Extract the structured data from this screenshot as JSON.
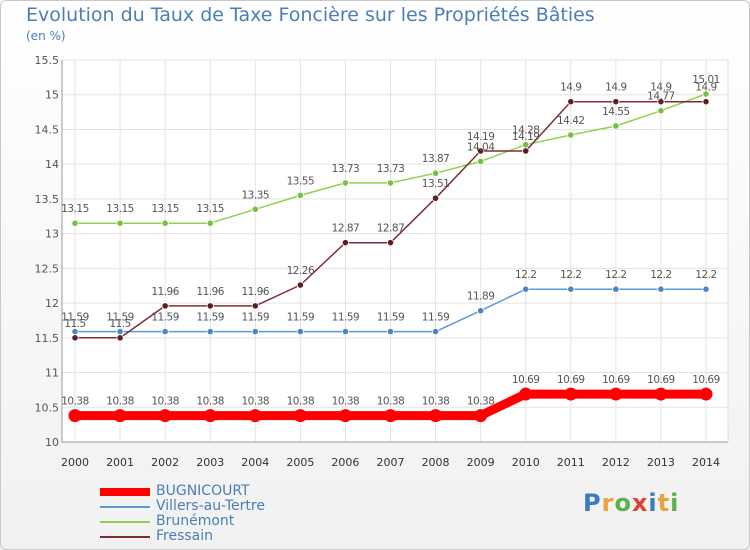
{
  "chart_data": {
    "type": "line",
    "title": "Evolution du Taux de Taxe Foncière sur les Propriétés Bâties",
    "ylabel": "(en %)",
    "categories": [
      "2000",
      "2001",
      "2002",
      "2003",
      "2004",
      "2005",
      "2006",
      "2007",
      "2008",
      "2009",
      "2010",
      "2011",
      "2012",
      "2013",
      "2014"
    ],
    "ylim": [
      10,
      15.5
    ],
    "yticks": [
      "10",
      "10.5",
      "11",
      "11.5",
      "12",
      "12.5",
      "13",
      "13.5",
      "14",
      "14.5",
      "15",
      "15.5"
    ],
    "grid": true,
    "legend_position": "bottom-left",
    "series": [
      {
        "name": "BUGNICOURT",
        "color": "#ff0000",
        "values": [
          10.38,
          10.38,
          10.38,
          10.38,
          10.38,
          10.38,
          10.38,
          10.38,
          10.38,
          10.38,
          10.69,
          10.69,
          10.69,
          10.69,
          10.69
        ],
        "labels": [
          "10.38",
          "10.38",
          "10.38",
          "10.38",
          "10.38",
          "10.38",
          "10.38",
          "10.38",
          "10.38",
          "10.38",
          "10.69",
          "10.69",
          "10.69",
          "10.69",
          "10.69"
        ]
      },
      {
        "name": "Villers-au-Tertre",
        "color": "#5b9bd5",
        "values": [
          11.59,
          11.59,
          11.59,
          11.59,
          11.59,
          11.59,
          11.59,
          11.59,
          11.59,
          11.89,
          12.2,
          12.2,
          12.2,
          12.2,
          12.2
        ],
        "labels": [
          "11.59",
          "11.59",
          "11.59",
          "11.59",
          "11.59",
          "11.59",
          "11.59",
          "11.59",
          "11.59",
          "11.89",
          "12.2",
          "12.2",
          "12.2",
          "12.2",
          "12.2"
        ]
      },
      {
        "name": "Brunémont",
        "color": "#8fd14f",
        "values": [
          13.15,
          13.15,
          13.15,
          13.15,
          13.35,
          13.55,
          13.73,
          13.73,
          13.87,
          14.04,
          14.28,
          14.42,
          14.55,
          14.77,
          15.01
        ],
        "labels": [
          "13.15",
          "13.15",
          "13.15",
          "13.15",
          "13.35",
          "13.55",
          "13.73",
          "13.73",
          "13.87",
          "14.04",
          "14.28",
          "14.42",
          "14.55",
          "14.77",
          "15.01"
        ]
      },
      {
        "name": "Fressain",
        "color": "#7b2f34",
        "values": [
          11.5,
          11.5,
          11.96,
          11.96,
          11.96,
          12.26,
          12.87,
          12.87,
          13.51,
          14.19,
          14.19,
          14.9,
          14.9,
          14.9,
          14.9
        ],
        "labels": [
          "11.5",
          "11.5",
          "11.96",
          "11.96",
          "11.96",
          "12.26",
          "12.87",
          "12.87",
          "13.51",
          "14.19",
          "14.19",
          "14.9",
          "14.9",
          "14.9",
          "14.9"
        ]
      }
    ]
  },
  "logo": {
    "text": "Proxiti"
  }
}
